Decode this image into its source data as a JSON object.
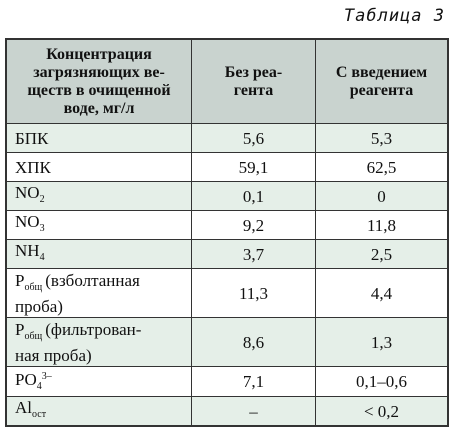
{
  "caption": "Таблица 3",
  "table": {
    "header": [
      [
        "Концентрация",
        "загрязняющих ве-",
        "ществ в очищенной",
        "воде, мг/л"
      ],
      [
        "Без реа-",
        "гента"
      ],
      [
        "С введением",
        "реагента"
      ]
    ],
    "rows": [
      [
        {
          "text": "БПК"
        },
        "5,6",
        "5,3"
      ],
      [
        {
          "text": "ХПК"
        },
        "59,1",
        "62,5"
      ],
      [
        {
          "text": "NO",
          "sub": "2"
        },
        "0,1",
        "0"
      ],
      [
        {
          "text": "NO",
          "sub": "3"
        },
        "9,2",
        "11,8"
      ],
      [
        {
          "text": "NH",
          "sub": "4"
        },
        "3,7",
        "2,5"
      ],
      [
        {
          "text": "P",
          "sub": "общ",
          "note": [
            "(взболтанная",
            "проба)"
          ]
        },
        "11,3",
        "4,4"
      ],
      [
        {
          "text": "P",
          "sub": "общ",
          "note": [
            "(фильтрован-",
            "ная проба)"
          ]
        },
        "8,6",
        "1,3"
      ],
      [
        {
          "text": "PO",
          "sub": "4",
          "sup": "3–"
        },
        "7,1",
        "0,1–0,6"
      ],
      [
        {
          "text": "Al",
          "sub": "ост"
        },
        "–",
        "< 0,2"
      ]
    ]
  }
}
